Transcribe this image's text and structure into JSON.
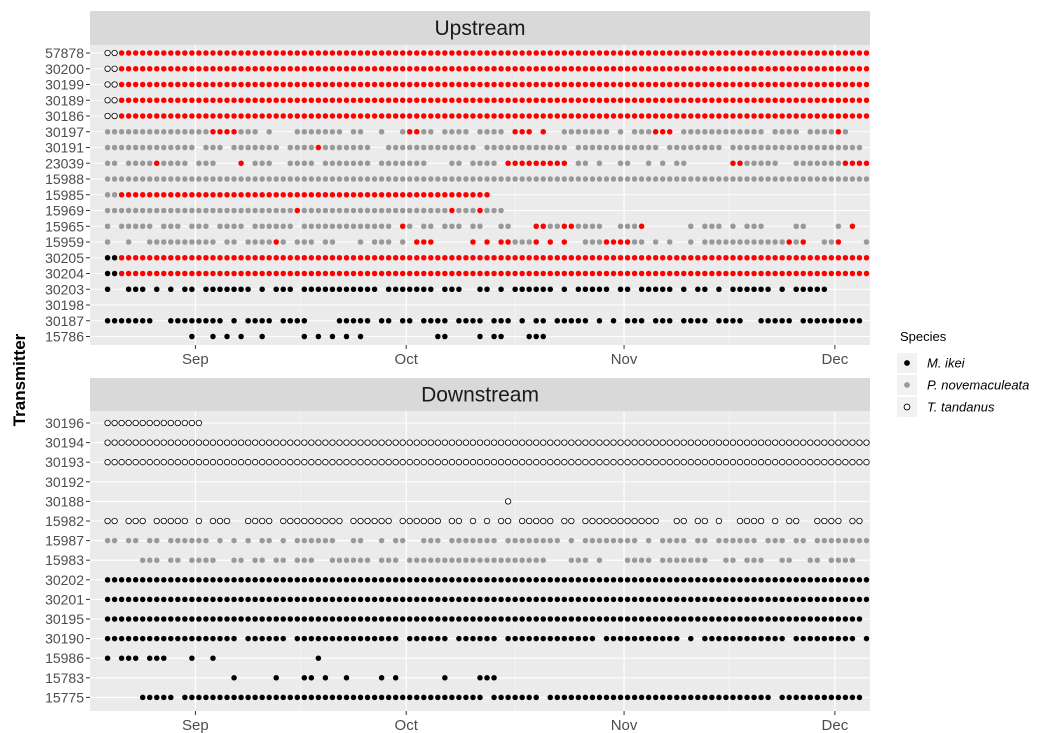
{
  "colors": {
    "panel_bg": "#ebebeb",
    "grid": "#ffffff",
    "strip_bg": "#d9d9d9",
    "M. ikei": "#000000",
    "P. novemaculeata": "#999999",
    "T. tandanus": "#ffffff",
    "highlight": "#ff0000"
  },
  "chart_data": {
    "type": "scatter",
    "ylabel": "Transmitter",
    "x_ticks": [
      "Sep",
      "Oct",
      "Nov",
      "Dec"
    ],
    "xlim": [
      "2020-08-17",
      "2020-12-06"
    ],
    "legend": {
      "title": "Species",
      "position": "right",
      "entries": [
        {
          "label": "M. ikei",
          "shape": "filled circle",
          "color": "#000000"
        },
        {
          "label": "P. novemaculeata",
          "shape": "filled circle",
          "color": "#999999"
        },
        {
          "label": "T. tandanus",
          "shape": "open circle",
          "color": "#000000"
        }
      ]
    },
    "panels": [
      {
        "title": "Upstream",
        "transmitters": [
          {
            "id": "57878",
            "species": "T. tandanus",
            "detections": "Aug 19 - Dec 05 daily",
            "highlight": "Aug 21 - Dec 05"
          },
          {
            "id": "30200",
            "species": "T. tandanus",
            "detections": "Aug 19 - Dec 05 daily",
            "highlight": "Aug 21 - Dec 05"
          },
          {
            "id": "30199",
            "species": "T. tandanus",
            "detections": "Aug 19 - Dec 05 daily",
            "highlight": "Aug 21 - Dec 05"
          },
          {
            "id": "30189",
            "species": "T. tandanus",
            "detections": "Aug 19 - Dec 05 daily",
            "highlight": "Aug 21 - Dec 05"
          },
          {
            "id": "30186",
            "species": "T. tandanus",
            "detections": "Aug 19 - Dec 05 daily",
            "highlight": "Aug 21 - Dec 05"
          },
          {
            "id": "30197",
            "species": "P. novemaculeata",
            "detections": "Aug 19 - Dec 02 intermittent",
            "highlight": "Sep 03-06, Sep 25-26, Oct 01-02, Oct 16-20, Nov 05-07, Dec 01"
          },
          {
            "id": "30191",
            "species": "P. novemaculeata",
            "detections": "Aug 19 - Dec 04 near daily",
            "highlight": "Sep 18"
          },
          {
            "id": "23039",
            "species": "P. novemaculeata",
            "detections": "Aug 19 - Dec 05 intermittent",
            "highlight": "Aug 26, Sep 07, Oct 15-24, Nov 12-17, Dec 02-05"
          },
          {
            "id": "15988",
            "species": "P. novemaculeata",
            "detections": "Aug 19 - Dec 05",
            "highlight": "Aug 21 - Nov 29 (scattered gaps)"
          },
          {
            "id": "15985",
            "species": "P. novemaculeata",
            "detections": "Aug 19 - Oct 12",
            "highlight": "Aug 21 - Oct 12"
          },
          {
            "id": "15969",
            "species": "P. novemaculeata",
            "detections": "Aug 19 - Oct 14",
            "highlight": "Sep 15, Oct 07, Oct 11"
          },
          {
            "id": "15965",
            "species": "P. novemaculeata",
            "detections": "Aug 19 - Dec 03 intermittent",
            "highlight": "Sep 29-30, Oct 19-20, Oct 23-24, Nov 03, Dec 02-03"
          },
          {
            "id": "15959",
            "species": "P. novemaculeata",
            "detections": "Aug 19 - Dec 05 intermittent",
            "highlight": "Aug 23, Sep 12, Oct 01-15, Oct 19-24, Oct 29-Nov 01, Nov 24, Nov 26, Dec 01-03"
          },
          {
            "id": "30205",
            "species": "M. ikei",
            "detections": "Aug 19 - Dec 05 daily",
            "highlight": "Aug 21 - Dec 05"
          },
          {
            "id": "30204",
            "species": "M. ikei",
            "detections": "Aug 19 - Dec 05 daily",
            "highlight": "Aug 21 - Dec 05"
          },
          {
            "id": "30203",
            "species": "M. ikei",
            "detections": "Aug 19 - Nov 29 intermittent",
            "highlight": ""
          },
          {
            "id": "30198",
            "species": "M. ikei",
            "detections": "none",
            "highlight": ""
          },
          {
            "id": "30187",
            "species": "M. ikei",
            "detections": "Aug 19 - Dec 04 intermittent",
            "highlight": ""
          },
          {
            "id": "15786",
            "species": "M. ikei",
            "detections": "Aug 31 - Oct 20 sparse",
            "highlight": ""
          }
        ]
      },
      {
        "title": "Downstream",
        "transmitters": [
          {
            "id": "30196",
            "species": "T. tandanus",
            "detections": "Aug 19 - Sep 01",
            "highlight": ""
          },
          {
            "id": "30194",
            "species": "T. tandanus",
            "detections": "Aug 19 - Dec 05 daily",
            "highlight": ""
          },
          {
            "id": "30193",
            "species": "T. tandanus",
            "detections": "Aug 19 - Dec 05 daily",
            "highlight": ""
          },
          {
            "id": "30192",
            "species": "T. tandanus",
            "detections": "none",
            "highlight": ""
          },
          {
            "id": "30188",
            "species": "T. tandanus",
            "detections": "Oct 15",
            "highlight": ""
          },
          {
            "id": "15982",
            "species": "T. tandanus",
            "detections": "Aug 19 - Dec 04 intermittent",
            "highlight": ""
          },
          {
            "id": "15987",
            "species": "P. novemaculeata",
            "detections": "Aug 19 - Dec 05 intermittent",
            "highlight": ""
          },
          {
            "id": "15983",
            "species": "P. novemaculeata",
            "detections": "Aug 24 - Dec 03 intermittent",
            "highlight": ""
          },
          {
            "id": "30202",
            "species": "M. ikei",
            "detections": "Aug 19 - Dec 05 daily",
            "highlight": ""
          },
          {
            "id": "30201",
            "species": "M. ikei",
            "detections": "Aug 19 - Dec 05 daily",
            "highlight": ""
          },
          {
            "id": "30195",
            "species": "M. ikei",
            "detections": "Aug 19 - Dec 04 daily",
            "highlight": ""
          },
          {
            "id": "30190",
            "species": "M. ikei",
            "detections": "Aug 19 - Dec 05 near daily",
            "highlight": ""
          },
          {
            "id": "15986",
            "species": "M. ikei",
            "detections": "Aug 19 - Sep 18 sparse",
            "highlight": ""
          },
          {
            "id": "15783",
            "species": "M. ikei",
            "detections": "Sep 06 - Oct 13 sparse",
            "highlight": ""
          },
          {
            "id": "15775",
            "species": "M. ikei",
            "detections": "Aug 24 - Dec 04 near daily",
            "highlight": ""
          }
        ]
      }
    ]
  }
}
